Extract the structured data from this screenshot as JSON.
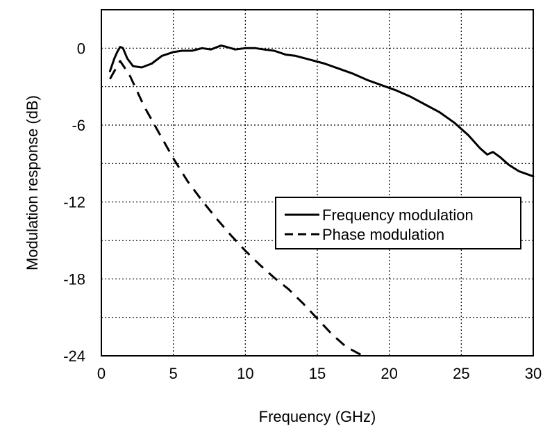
{
  "chart_data": {
    "type": "line",
    "title": "",
    "xlabel": "Frequency (GHz)",
    "ylabel": "Modulation response (dB)",
    "xlim": [
      0,
      30
    ],
    "ylim": [
      -24,
      3
    ],
    "xticks": [
      0,
      5,
      10,
      15,
      20,
      25,
      30
    ],
    "yticks": [
      0,
      -6,
      -12,
      -18,
      -24
    ],
    "xtick_labels": [
      "0",
      "5",
      "10",
      "15",
      "20",
      "25",
      "30"
    ],
    "ytick_labels": [
      "0",
      "-6",
      "-12",
      "-18",
      "-24"
    ],
    "grid": true,
    "legend_position": "center-right",
    "series": [
      {
        "name": "Frequency modulation",
        "style": "solid",
        "color": "#000000",
        "x": [
          0.6,
          0.9,
          1.1,
          1.3,
          1.5,
          1.8,
          2.2,
          2.8,
          3.5,
          4.2,
          5.0,
          5.6,
          6.3,
          7.0,
          7.6,
          8.3,
          8.7,
          9.3,
          10.0,
          10.7,
          11.3,
          12.0,
          12.8,
          13.5,
          14.5,
          15.5,
          16.5,
          17.5,
          18.5,
          19.5,
          20.5,
          21.5,
          22.5,
          23.5,
          24.5,
          25.5,
          26.3,
          26.8,
          27.2,
          27.7,
          28.3,
          29.0,
          30.0
        ],
        "y": [
          -1.8,
          -0.8,
          -0.3,
          0.1,
          0.0,
          -0.8,
          -1.4,
          -1.5,
          -1.2,
          -0.6,
          -0.3,
          -0.2,
          -0.2,
          0.0,
          -0.1,
          0.2,
          0.1,
          -0.1,
          0.0,
          0.0,
          -0.1,
          -0.2,
          -0.5,
          -0.6,
          -0.9,
          -1.2,
          -1.6,
          -2.0,
          -2.5,
          -2.9,
          -3.3,
          -3.8,
          -4.4,
          -5.0,
          -5.8,
          -6.8,
          -7.8,
          -8.3,
          -8.1,
          -8.5,
          -9.1,
          -9.6,
          -10.0
        ]
      },
      {
        "name": "Phase modulation",
        "style": "dashed",
        "color": "#000000",
        "x": [
          0.6,
          1.0,
          1.3,
          1.6,
          2.0,
          2.5,
          3.0,
          3.5,
          4.0,
          4.5,
          5.0,
          6.0,
          7.0,
          8.0,
          9.0,
          10.0,
          11.0,
          12.0,
          13.0,
          14.0,
          15.0,
          16.0,
          17.0,
          18.0,
          18.4
        ],
        "y": [
          -2.4,
          -1.6,
          -1.0,
          -1.5,
          -2.2,
          -3.4,
          -4.6,
          -5.6,
          -6.6,
          -7.6,
          -8.6,
          -10.4,
          -11.9,
          -13.3,
          -14.6,
          -15.8,
          -16.9,
          -17.9,
          -18.8,
          -19.9,
          -21.1,
          -22.3,
          -23.3,
          -23.9,
          -24.0
        ]
      }
    ]
  }
}
